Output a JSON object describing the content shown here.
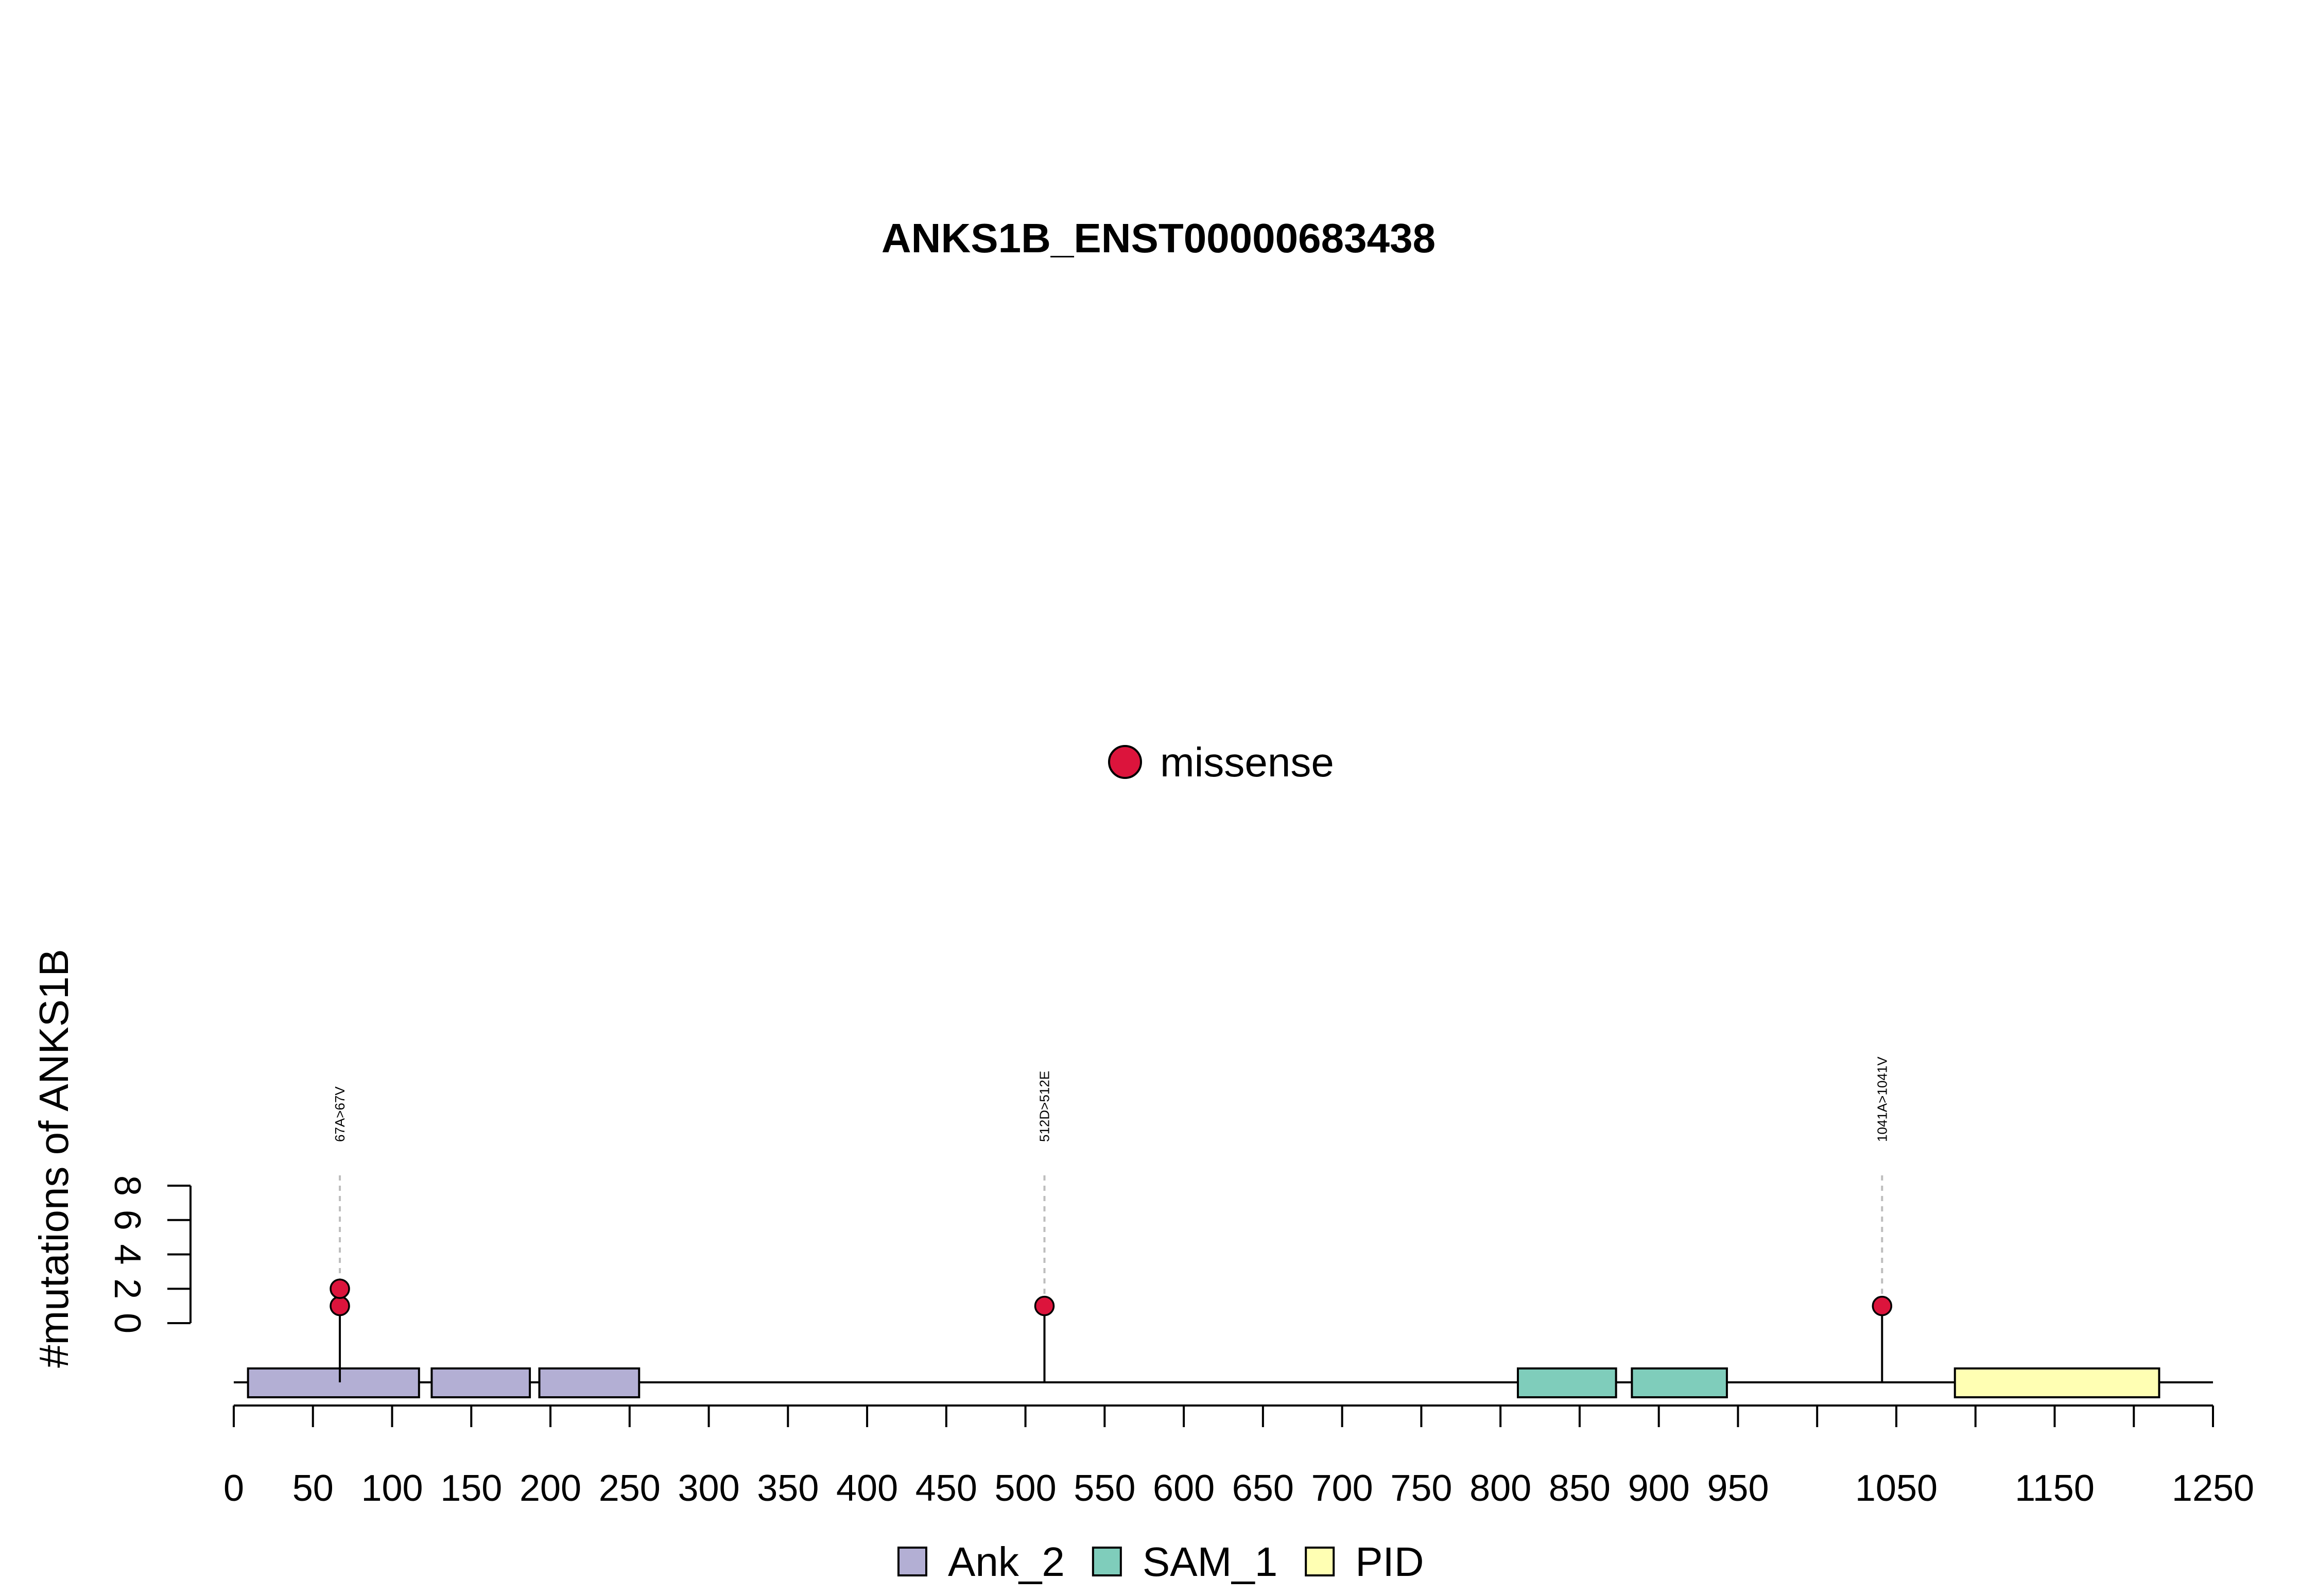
{
  "chart_data": {
    "type": "scatter",
    "title": "ANKS1B_ENST00000683438",
    "ylabel": "#mutations of ANKS1B",
    "xlabel": "",
    "xlim": [
      0,
      1250
    ],
    "ylim": [
      0,
      8
    ],
    "x_ticks": [
      0,
      50,
      100,
      150,
      200,
      250,
      300,
      350,
      400,
      450,
      500,
      550,
      600,
      650,
      700,
      750,
      800,
      850,
      900,
      950,
      1000,
      1050,
      1100,
      1150,
      1200,
      1250
    ],
    "x_tick_labels": [
      "0",
      "50",
      "100",
      "150",
      "200",
      "250",
      "300",
      "350",
      "400",
      "450",
      "500",
      "550",
      "600",
      "650",
      "700",
      "750",
      "800",
      "850",
      "900",
      "950",
      "",
      "1050",
      "",
      "1150",
      "",
      "1250"
    ],
    "y_ticks": [
      0,
      2,
      4,
      6,
      8
    ],
    "y_tick_labels": [
      "0",
      "2",
      "4",
      "6",
      "8"
    ],
    "mutation_legend": [
      {
        "label": "missense",
        "color": "#DC143C"
      }
    ],
    "mutations": [
      {
        "position": 67,
        "label": "67A>67V",
        "count": 2,
        "type": "missense"
      },
      {
        "position": 512,
        "label": "512D>512E",
        "count": 1,
        "type": "missense"
      },
      {
        "position": 1041,
        "label": "1041A>1041V",
        "count": 1,
        "type": "missense"
      }
    ],
    "domains": [
      {
        "name": "Ank_2",
        "start": 9,
        "end": 117,
        "color": "#B3AFD4"
      },
      {
        "name": "Ank_2",
        "start": 125,
        "end": 187,
        "color": "#B3AFD4"
      },
      {
        "name": "Ank_2",
        "start": 193,
        "end": 256,
        "color": "#B3AFD4"
      },
      {
        "name": "SAM_1",
        "start": 811,
        "end": 873,
        "color": "#7FCDBB"
      },
      {
        "name": "SAM_1",
        "start": 883,
        "end": 943,
        "color": "#7FCDBB"
      },
      {
        "name": "PID",
        "start": 1087,
        "end": 1216,
        "color": "#FFFFB3"
      }
    ],
    "domain_legend": [
      {
        "label": "Ank_2",
        "color": "#B3AFD4"
      },
      {
        "label": "SAM_1",
        "color": "#7FCDBB"
      },
      {
        "label": "PID",
        "color": "#FFFFB3"
      }
    ],
    "legend_position": "bottom"
  }
}
